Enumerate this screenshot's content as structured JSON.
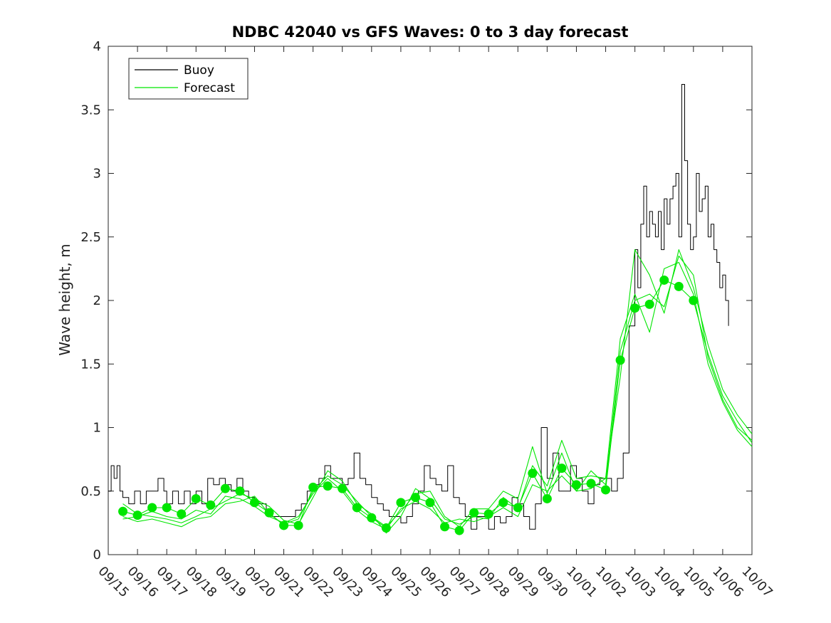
{
  "chart_data": {
    "type": "line",
    "title": "NDBC 42040 vs GFS Waves: 0 to 3 day forecast",
    "xlabel": "",
    "ylabel": "Wave height, m",
    "xlim": [
      0,
      22
    ],
    "ylim": [
      0,
      4
    ],
    "yticks": [
      0,
      0.5,
      1,
      1.5,
      2,
      2.5,
      3,
      3.5,
      4
    ],
    "ytick_labels": [
      "0",
      "0.5",
      "1",
      "1.5",
      "2",
      "2.5",
      "3",
      "3.5",
      "4"
    ],
    "xtick_labels": [
      "09/15",
      "09/16",
      "09/17",
      "09/18",
      "09/19",
      "09/20",
      "09/21",
      "09/22",
      "09/23",
      "09/24",
      "09/25",
      "09/26",
      "09/27",
      "09/28",
      "09/29",
      "09/30",
      "10/01",
      "10/02",
      "10/03",
      "10/04",
      "10/05",
      "10/06",
      "10/07"
    ],
    "grid": false,
    "legend_position": "top-left",
    "legend": [
      {
        "label": "Buoy",
        "color": "#000000"
      },
      {
        "label": "Forecast",
        "color": "#00e600"
      }
    ],
    "series": [
      {
        "name": "Buoy",
        "color": "#000000",
        "x": [
          0,
          0.1,
          0.2,
          0.3,
          0.4,
          0.5,
          0.7,
          0.9,
          1.1,
          1.3,
          1.5,
          1.7,
          1.9,
          2.0,
          2.2,
          2.4,
          2.6,
          2.8,
          3.0,
          3.2,
          3.4,
          3.6,
          3.8,
          4.0,
          4.2,
          4.4,
          4.6,
          4.8,
          5.0,
          5.2,
          5.4,
          5.6,
          5.8,
          6.0,
          6.2,
          6.4,
          6.6,
          6.8,
          7.0,
          7.2,
          7.4,
          7.6,
          7.8,
          8.0,
          8.2,
          8.4,
          8.6,
          8.8,
          9.0,
          9.2,
          9.4,
          9.6,
          9.8,
          10.0,
          10.2,
          10.4,
          10.6,
          10.8,
          11.0,
          11.2,
          11.4,
          11.6,
          11.8,
          12.0,
          12.2,
          12.4,
          12.6,
          12.8,
          13.0,
          13.2,
          13.4,
          13.6,
          13.8,
          14.0,
          14.2,
          14.4,
          14.6,
          14.8,
          15.0,
          15.2,
          15.4,
          15.6,
          15.8,
          16.0,
          16.2,
          16.4,
          16.6,
          16.8,
          17.0,
          17.2,
          17.4,
          17.6,
          17.8,
          18.0,
          18.1,
          18.2,
          18.3,
          18.4,
          18.5,
          18.6,
          18.7,
          18.8,
          18.9,
          19.0,
          19.1,
          19.2,
          19.3,
          19.4,
          19.5,
          19.6,
          19.7,
          19.8,
          19.9,
          20.0,
          20.1,
          20.2,
          20.3,
          20.4,
          20.5,
          20.6,
          20.7,
          20.8,
          20.9,
          21.0,
          21.1,
          21.2
        ],
        "y": [
          0.5,
          0.7,
          0.6,
          0.7,
          0.5,
          0.45,
          0.4,
          0.5,
          0.4,
          0.5,
          0.5,
          0.6,
          0.5,
          0.4,
          0.5,
          0.4,
          0.5,
          0.4,
          0.5,
          0.4,
          0.6,
          0.55,
          0.6,
          0.55,
          0.5,
          0.6,
          0.5,
          0.45,
          0.4,
          0.4,
          0.35,
          0.3,
          0.3,
          0.3,
          0.3,
          0.35,
          0.4,
          0.5,
          0.55,
          0.6,
          0.7,
          0.6,
          0.6,
          0.55,
          0.6,
          0.8,
          0.6,
          0.55,
          0.45,
          0.4,
          0.35,
          0.3,
          0.3,
          0.25,
          0.3,
          0.4,
          0.5,
          0.7,
          0.6,
          0.55,
          0.5,
          0.7,
          0.45,
          0.4,
          0.3,
          0.2,
          0.3,
          0.3,
          0.2,
          0.3,
          0.25,
          0.3,
          0.45,
          0.4,
          0.3,
          0.2,
          0.4,
          1.0,
          0.6,
          0.8,
          0.5,
          0.5,
          0.7,
          0.6,
          0.5,
          0.4,
          0.55,
          0.6,
          0.6,
          0.5,
          0.6,
          0.8,
          1.8,
          2.4,
          2.1,
          2.6,
          2.9,
          2.5,
          2.7,
          2.6,
          2.5,
          2.7,
          2.4,
          2.8,
          2.6,
          2.8,
          2.9,
          3.0,
          2.5,
          3.7,
          3.1,
          2.6,
          2.4,
          2.5,
          3.0,
          2.7,
          2.8,
          2.9,
          2.5,
          2.6,
          2.4,
          2.3,
          2.1,
          2.2,
          2.0,
          1.8
        ]
      },
      {
        "name": "Forecast",
        "color": "#00e600",
        "x": [
          0.5,
          1,
          1.5,
          2,
          2.5,
          3,
          3.5,
          4,
          4.5,
          5,
          5.5,
          6,
          6.5,
          7,
          7.5,
          8,
          8.5,
          9,
          9.5,
          10,
          10.5,
          11,
          11.5,
          12,
          12.5,
          13,
          13.5,
          14,
          14.5,
          15,
          15.5,
          16,
          16.5,
          17,
          17.5,
          18,
          18.5,
          19,
          19.5,
          20,
          20.5,
          21,
          21.5,
          22
        ],
        "y": [
          0.34,
          0.31,
          0.37,
          0.37,
          0.32,
          0.44,
          0.39,
          0.52,
          0.5,
          0.41,
          0.33,
          0.23,
          0.23,
          0.53,
          0.54,
          0.52,
          0.37,
          0.29,
          0.21,
          0.41,
          0.45,
          0.41,
          0.22,
          0.19,
          0.33,
          0.32,
          0.41,
          0.37,
          0.64,
          0.44,
          0.68,
          0.55,
          0.56,
          0.51,
          1.53,
          1.94,
          1.97,
          2.16,
          2.11,
          2.0,
          1.58,
          1.25,
          1.05,
          0.88
        ]
      },
      {
        "name": "",
        "color": "#00e600",
        "x": [
          0.5,
          1,
          1.5,
          2,
          2.5,
          3,
          3.5,
          4,
          4.5,
          5,
          5.5,
          6,
          6.5,
          7,
          7.5,
          8,
          8.5,
          9,
          9.5,
          10,
          10.5,
          11,
          11.5,
          12,
          12.5,
          13,
          13.5,
          14,
          14.5,
          15,
          15.5,
          16,
          16.5,
          17,
          17.5,
          18,
          18.5,
          19,
          19.5,
          20,
          20.5,
          21,
          21.5,
          22
        ],
        "y": [
          0.28,
          0.3,
          0.34,
          0.3,
          0.28,
          0.35,
          0.32,
          0.46,
          0.44,
          0.38,
          0.3,
          0.25,
          0.3,
          0.48,
          0.6,
          0.5,
          0.35,
          0.26,
          0.2,
          0.36,
          0.42,
          0.36,
          0.25,
          0.28,
          0.26,
          0.3,
          0.37,
          0.3,
          0.55,
          0.5,
          0.62,
          0.5,
          0.52,
          0.6,
          1.7,
          2.05,
          1.75,
          2.25,
          2.3,
          2.05,
          1.5,
          1.2,
          0.98,
          0.85
        ]
      },
      {
        "name": "",
        "color": "#00e600",
        "x": [
          0.5,
          1,
          1.5,
          2,
          2.5,
          3,
          3.5,
          4,
          4.5,
          5,
          5.5,
          6,
          6.5,
          7,
          7.5,
          8,
          8.5,
          9,
          9.5,
          10,
          10.5,
          11,
          11.5,
          12,
          12.5,
          13,
          13.5,
          14,
          14.5,
          15,
          15.5,
          16,
          16.5,
          17,
          17.5,
          18,
          18.5,
          19,
          19.5,
          20,
          20.5,
          21,
          21.5,
          22
        ],
        "y": [
          0.4,
          0.32,
          0.3,
          0.28,
          0.25,
          0.3,
          0.36,
          0.42,
          0.48,
          0.44,
          0.38,
          0.27,
          0.24,
          0.45,
          0.66,
          0.58,
          0.4,
          0.32,
          0.17,
          0.3,
          0.52,
          0.44,
          0.28,
          0.24,
          0.3,
          0.28,
          0.45,
          0.36,
          0.7,
          0.54,
          0.9,
          0.6,
          0.62,
          0.6,
          1.4,
          2.4,
          2.2,
          1.9,
          2.4,
          2.1,
          1.65,
          1.3,
          1.1,
          0.95
        ]
      },
      {
        "name": "",
        "color": "#00e600",
        "x": [
          0.5,
          1,
          1.5,
          2,
          2.5,
          3,
          3.5,
          4,
          4.5,
          5,
          5.5,
          6,
          6.5,
          7,
          7.5,
          8,
          8.5,
          9,
          9.5,
          10,
          10.5,
          11,
          11.5,
          12,
          12.5,
          13,
          13.5,
          14,
          14.5,
          15,
          15.5,
          16,
          16.5,
          17,
          17.5,
          18,
          18.5,
          19,
          19.5,
          20,
          20.5,
          21,
          21.5,
          22
        ],
        "y": [
          0.3,
          0.26,
          0.28,
          0.25,
          0.22,
          0.28,
          0.3,
          0.4,
          0.42,
          0.46,
          0.32,
          0.24,
          0.28,
          0.5,
          0.62,
          0.55,
          0.42,
          0.3,
          0.22,
          0.34,
          0.48,
          0.5,
          0.3,
          0.22,
          0.36,
          0.36,
          0.5,
          0.44,
          0.85,
          0.48,
          0.8,
          0.5,
          0.66,
          0.55,
          1.6,
          2.0,
          2.05,
          1.95,
          2.35,
          2.2,
          1.55,
          1.22,
          1.0,
          0.9
        ]
      }
    ]
  }
}
